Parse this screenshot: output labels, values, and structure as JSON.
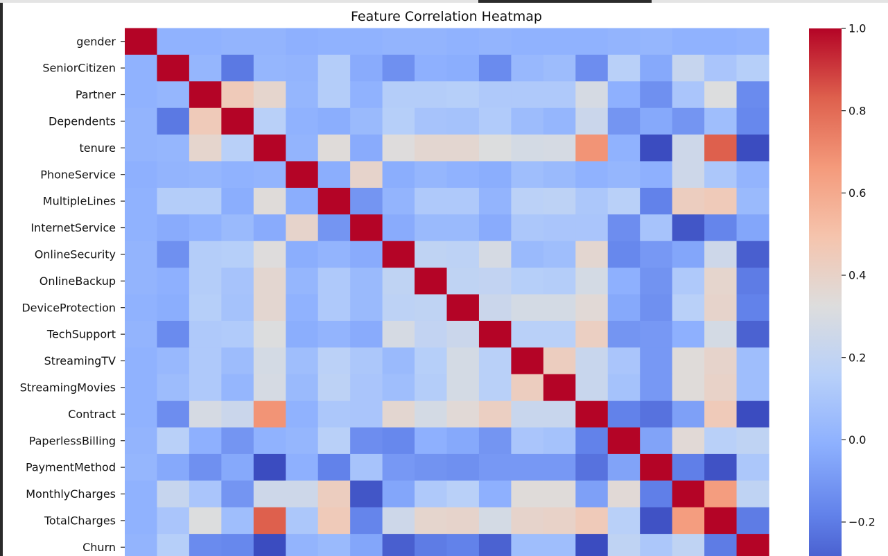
{
  "chart_data": {
    "type": "heatmap",
    "title": "Feature Correlation Heatmap",
    "xlabel": "",
    "ylabel": "",
    "colormap": "coolwarm",
    "labels": [
      "gender",
      "SeniorCitizen",
      "Partner",
      "Dependents",
      "tenure",
      "PhoneService",
      "MultipleLines",
      "InternetService",
      "OnlineSecurity",
      "OnlineBackup",
      "DeviceProtection",
      "TechSupport",
      "StreamingTV",
      "StreamingMovies",
      "Contract",
      "PaperlessBilling",
      "PaymentMethod",
      "MonthlyCharges",
      "TotalCharges",
      "Churn"
    ],
    "vmin": -0.35,
    "vmax": 1.0,
    "colorbar_ticks": [
      1.0,
      0.8,
      0.6,
      0.4,
      0.2,
      0.0,
      -0.2
    ],
    "colorbar_tick_labels": [
      "1.0",
      "0.8",
      "0.6",
      "0.4",
      "0.2",
      "0.0",
      "−0.2"
    ],
    "matrix": [
      [
        1.0,
        0.0,
        0.0,
        0.01,
        0.01,
        -0.01,
        0.0,
        0.0,
        0.01,
        0.01,
        0.0,
        0.01,
        0.0,
        0.0,
        0.0,
        0.01,
        0.02,
        0.0,
        0.0,
        0.01
      ],
      [
        0.0,
        1.0,
        0.02,
        -0.21,
        0.02,
        0.01,
        0.14,
        -0.03,
        -0.13,
        -0.01,
        -0.02,
        -0.15,
        0.03,
        0.05,
        -0.14,
        0.16,
        -0.04,
        0.22,
        0.1,
        0.15
      ],
      [
        0.0,
        0.02,
        1.0,
        0.45,
        0.38,
        0.02,
        0.14,
        0.0,
        0.14,
        0.14,
        0.15,
        0.12,
        0.12,
        0.12,
        0.29,
        -0.01,
        -0.13,
        0.1,
        0.32,
        -0.15
      ],
      [
        0.01,
        -0.21,
        0.45,
        1.0,
        0.16,
        0.0,
        -0.02,
        0.04,
        0.15,
        0.09,
        0.08,
        0.13,
        0.05,
        0.02,
        0.24,
        -0.11,
        -0.04,
        -0.11,
        0.06,
        -0.16
      ],
      [
        0.01,
        0.02,
        0.38,
        0.16,
        1.0,
        0.01,
        0.34,
        -0.03,
        0.33,
        0.37,
        0.37,
        0.32,
        0.28,
        0.29,
        0.68,
        0.0,
        -0.37,
        0.25,
        0.83,
        -0.35
      ],
      [
        -0.01,
        0.01,
        0.02,
        0.0,
        0.01,
        1.0,
        -0.02,
        0.39,
        -0.02,
        0.02,
        0.0,
        -0.02,
        0.06,
        0.04,
        0.0,
        0.02,
        -0.01,
        0.25,
        0.11,
        0.01
      ],
      [
        0.0,
        0.14,
        0.14,
        -0.02,
        0.34,
        -0.02,
        1.0,
        -0.11,
        0.01,
        0.12,
        0.12,
        0.01,
        0.17,
        0.18,
        0.11,
        0.16,
        -0.18,
        0.43,
        0.45,
        0.04
      ],
      [
        0.0,
        -0.03,
        0.0,
        0.04,
        -0.03,
        0.39,
        -0.11,
        1.0,
        -0.03,
        0.04,
        0.04,
        -0.03,
        0.11,
        0.1,
        0.1,
        -0.14,
        0.09,
        -0.32,
        -0.17,
        -0.05
      ],
      [
        0.01,
        -0.13,
        0.14,
        0.15,
        0.33,
        -0.02,
        0.01,
        -0.03,
        1.0,
        0.19,
        0.18,
        0.29,
        0.04,
        0.06,
        0.37,
        -0.16,
        -0.1,
        -0.05,
        0.25,
        -0.29
      ],
      [
        0.01,
        -0.01,
        0.14,
        0.09,
        0.37,
        0.02,
        0.12,
        0.04,
        0.19,
        1.0,
        0.19,
        0.2,
        0.15,
        0.14,
        0.28,
        -0.01,
        -0.12,
        0.12,
        0.38,
        -0.2
      ],
      [
        0.0,
        -0.02,
        0.15,
        0.08,
        0.37,
        0.0,
        0.12,
        0.04,
        0.18,
        0.19,
        1.0,
        0.24,
        0.28,
        0.28,
        0.35,
        -0.04,
        -0.13,
        0.16,
        0.39,
        -0.18
      ],
      [
        0.01,
        -0.15,
        0.12,
        0.13,
        0.32,
        -0.02,
        0.01,
        -0.03,
        0.29,
        0.2,
        0.24,
        1.0,
        0.16,
        0.16,
        0.42,
        -0.11,
        -0.1,
        -0.01,
        0.28,
        -0.28
      ],
      [
        0.0,
        0.03,
        0.12,
        0.05,
        0.28,
        0.06,
        0.17,
        0.11,
        0.04,
        0.15,
        0.28,
        0.16,
        1.0,
        0.43,
        0.23,
        0.1,
        -0.1,
        0.34,
        0.39,
        0.06
      ],
      [
        0.0,
        0.05,
        0.12,
        0.02,
        0.29,
        0.04,
        0.18,
        0.1,
        0.06,
        0.14,
        0.28,
        0.16,
        0.43,
        1.0,
        0.23,
        0.08,
        -0.1,
        0.34,
        0.4,
        0.06
      ],
      [
        0.0,
        -0.14,
        0.29,
        0.24,
        0.68,
        0.0,
        0.11,
        0.1,
        0.37,
        0.28,
        0.35,
        0.42,
        0.23,
        0.23,
        1.0,
        -0.18,
        -0.23,
        -0.07,
        0.45,
        -0.4
      ],
      [
        0.01,
        0.16,
        -0.01,
        -0.11,
        0.0,
        0.02,
        0.16,
        -0.14,
        -0.16,
        -0.01,
        -0.04,
        -0.11,
        0.1,
        0.08,
        -0.18,
        1.0,
        -0.06,
        0.35,
        0.16,
        0.19
      ],
      [
        0.02,
        -0.04,
        -0.13,
        -0.04,
        -0.37,
        -0.01,
        -0.18,
        0.09,
        -0.1,
        -0.12,
        -0.13,
        -0.1,
        -0.1,
        -0.1,
        -0.23,
        -0.06,
        1.0,
        -0.19,
        -0.33,
        0.11
      ],
      [
        0.0,
        0.22,
        0.1,
        -0.11,
        0.25,
        0.25,
        0.43,
        -0.32,
        -0.05,
        0.12,
        0.16,
        -0.01,
        0.34,
        0.34,
        -0.07,
        0.35,
        -0.19,
        1.0,
        0.65,
        0.19
      ],
      [
        0.0,
        0.1,
        0.32,
        0.06,
        0.83,
        0.11,
        0.45,
        -0.17,
        0.25,
        0.38,
        0.39,
        0.28,
        0.39,
        0.4,
        0.45,
        0.16,
        -0.33,
        0.65,
        1.0,
        -0.2
      ],
      [
        0.01,
        0.15,
        -0.15,
        -0.16,
        -0.35,
        0.01,
        0.04,
        -0.05,
        -0.29,
        -0.2,
        -0.18,
        -0.28,
        0.06,
        0.06,
        -0.4,
        0.19,
        0.11,
        0.19,
        -0.2,
        1.0
      ]
    ]
  }
}
